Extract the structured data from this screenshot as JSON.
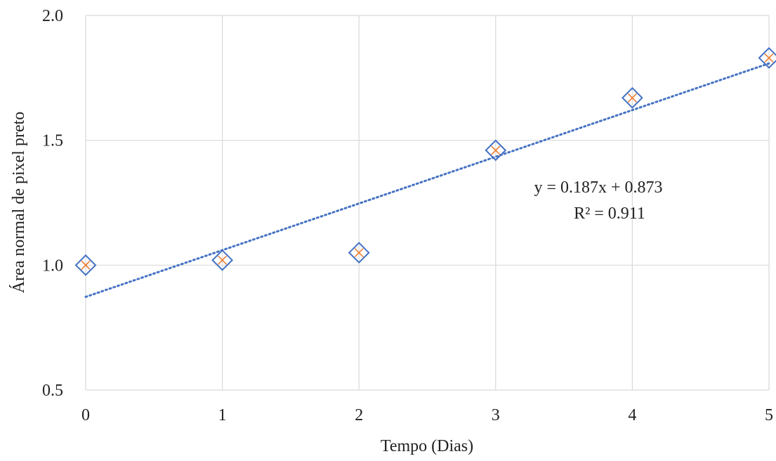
{
  "chart_data": {
    "type": "scatter",
    "title": "",
    "xlabel": "Tempo (Dias)",
    "ylabel": "Área normal de pixel preto",
    "xlim": [
      0,
      5
    ],
    "ylim": [
      0.5,
      2.0
    ],
    "xticks": [
      0,
      1,
      2,
      3,
      4,
      5
    ],
    "xtick_labels": [
      "0",
      "1",
      "2",
      "3",
      "4",
      "5"
    ],
    "yticks": [
      0.5,
      1.0,
      1.5,
      2.0
    ],
    "ytick_labels": [
      "0.5",
      "1.0",
      "1.5",
      "2.0"
    ],
    "grid": true,
    "series": [
      {
        "x": [
          0,
          1,
          2,
          3,
          4,
          5
        ],
        "y": [
          1.0,
          1.02,
          1.05,
          1.46,
          1.67,
          1.83
        ],
        "marker": "diamond",
        "color": "#4472C4"
      },
      {
        "x": [
          0,
          1,
          2,
          3,
          4,
          5
        ],
        "y": [
          1.0,
          1.02,
          1.05,
          1.46,
          1.67,
          1.83
        ],
        "marker": "x",
        "color": "#ED7D31"
      }
    ],
    "trendline": {
      "type": "linear",
      "slope": 0.187,
      "intercept": 0.873,
      "style": "dotted",
      "color": "#4472C4"
    },
    "annotations": [
      "y = 0.187x + 0.873",
      "R² = 0.911"
    ]
  }
}
